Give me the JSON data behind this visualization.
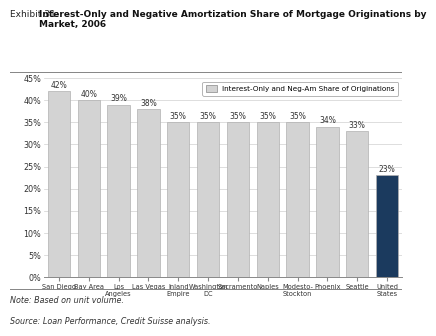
{
  "categories": [
    "San Diego",
    "Bay Area",
    "Los\nAngeles",
    "Las Vegas",
    "Inland\nEmpire",
    "Washington\nDC",
    "Sacramento",
    "Naples",
    "Modesto-\nStockton",
    "Phoenix",
    "Seattle",
    "United\nStates"
  ],
  "values": [
    42,
    40,
    39,
    38,
    35,
    35,
    35,
    35,
    35,
    34,
    33,
    23
  ],
  "bar_colors": [
    "#d3d3d3",
    "#d3d3d3",
    "#d3d3d3",
    "#d3d3d3",
    "#d3d3d3",
    "#d3d3d3",
    "#d3d3d3",
    "#d3d3d3",
    "#d3d3d3",
    "#d3d3d3",
    "#d3d3d3",
    "#1b3a5e"
  ],
  "bar_edge_color": "#b0b0b0",
  "legend_text": "Interest-Only and Neg-Am Share of Originations",
  "note": "Note: Based on unit volume.",
  "source": "Source: Loan Performance, Credit Suisse analysis.",
  "ylim": [
    0,
    45
  ],
  "yticks": [
    0,
    5,
    10,
    15,
    20,
    25,
    30,
    35,
    40,
    45
  ],
  "ytick_labels": [
    "0%",
    "5%",
    "10%",
    "15%",
    "20%",
    "25%",
    "30%",
    "35%",
    "40%",
    "45%"
  ],
  "background_color": "#ffffff",
  "grid_color": "#d0d0d0",
  "title_normal": "Exhibit 31: ",
  "title_bold": "Interest-Only and Negative Amortization Share of Mortgage Originations by\nMarket, 2006"
}
